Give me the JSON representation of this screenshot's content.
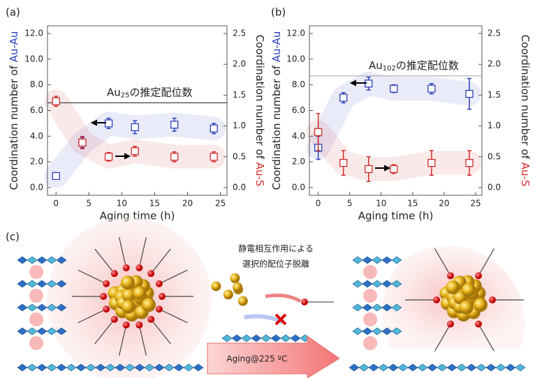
{
  "chart_data": [
    {
      "type": "scatter",
      "panel": "(a)",
      "xlabel": "Aging time (h)",
      "ylabel": "Coordination number of",
      "ylabel_species": "Au-Au",
      "y2label": "Coordination number of",
      "y2label_species": "Au-S",
      "xlim": [
        -1.3,
        26
      ],
      "xticks": [
        0,
        5,
        10,
        15,
        20,
        25
      ],
      "ylim": [
        -0.6,
        12.6
      ],
      "yticks": [
        {
          "value": 0,
          "label": "0.0"
        },
        {
          "value": 2,
          "label": "2.0"
        },
        {
          "value": 4,
          "label": "4.0"
        },
        {
          "value": 6,
          "label": "6.0"
        },
        {
          "value": 8,
          "label": "8.0"
        },
        {
          "value": 10,
          "label": "10.0"
        },
        {
          "value": 12,
          "label": "12.0"
        }
      ],
      "y2lim": [
        -0.125,
        2.625
      ],
      "y2ticks": [
        {
          "value": 0,
          "label": "0.0"
        },
        {
          "value": 0.5,
          "label": "0.5"
        },
        {
          "value": 1,
          "label": "1.0"
        },
        {
          "value": 1.5,
          "label": "1.5"
        },
        {
          "value": 2,
          "label": "2.0"
        },
        {
          "value": 2.5,
          "label": "2.5"
        }
      ],
      "ref_line": 6.6,
      "annotation": {
        "base": "Au",
        "sub": "25",
        "rest": "の推定配位数"
      },
      "series": [
        {
          "name": "Au-Au",
          "color": "#2a3fb8",
          "x": [
            0,
            4,
            8,
            12,
            18,
            24
          ],
          "values": [
            0.9,
            3.5,
            5.0,
            4.7,
            4.9,
            4.6
          ],
          "errors": [
            0.1,
            0.4,
            0.4,
            0.5,
            0.5,
            0.4
          ]
        },
        {
          "name": "Au-S",
          "color": "#d22a2a",
          "axis": "y2",
          "x": [
            0,
            4,
            8,
            12,
            18,
            24
          ],
          "values": [
            1.4,
            0.73,
            0.5,
            0.59,
            0.5,
            0.5
          ],
          "errors": [
            0.08,
            0.1,
            0.07,
            0.08,
            0.08,
            0.08
          ]
        }
      ]
    },
    {
      "type": "scatter",
      "panel": "(b)",
      "xlabel": "Aging time (h)",
      "ylabel": "Coordination number of",
      "ylabel_species": "Au-Au",
      "y2label": "Coordination number of",
      "y2label_species": "Au-S",
      "xlim": [
        -1.4,
        26
      ],
      "xticks": [
        0,
        5,
        10,
        15,
        20,
        25
      ],
      "ylim": [
        -0.6,
        12.6
      ],
      "yticks": [
        {
          "value": 0,
          "label": "0.0"
        },
        {
          "value": 2,
          "label": "2.0"
        },
        {
          "value": 4,
          "label": "4.0"
        },
        {
          "value": 6,
          "label": "6.0"
        },
        {
          "value": 8,
          "label": "8.0"
        },
        {
          "value": 10,
          "label": "10.0"
        },
        {
          "value": 12,
          "label": "12.0"
        }
      ],
      "y2lim": [
        -0.125,
        2.625
      ],
      "y2ticks": [
        {
          "value": 0,
          "label": "0.0"
        },
        {
          "value": 0.5,
          "label": "0.5"
        },
        {
          "value": 1,
          "label": "1.0"
        },
        {
          "value": 1.5,
          "label": "1.5"
        },
        {
          "value": 2,
          "label": "2.0"
        },
        {
          "value": 2.5,
          "label": "2.5"
        }
      ],
      "ref_line": 8.7,
      "annotation": {
        "base": "Au",
        "sub": "102",
        "rest": "の推定配位数"
      },
      "series": [
        {
          "name": "Au-Au",
          "color": "#2a3fb8",
          "x": [
            0,
            4,
            8,
            12,
            18,
            24
          ],
          "values": [
            3.1,
            7.0,
            8.1,
            7.7,
            7.7,
            7.3
          ],
          "errors": [
            0.9,
            0.4,
            0.5,
            0.3,
            0.4,
            1.2
          ]
        },
        {
          "name": "Au-S",
          "color": "#d22a2a",
          "axis": "y2",
          "x": [
            0,
            4,
            8,
            12,
            18,
            24
          ],
          "values": [
            0.9,
            0.4,
            0.3,
            0.3,
            0.4,
            0.4
          ],
          "errors": [
            0.3,
            0.2,
            0.2,
            0.07,
            0.2,
            0.2
          ]
        }
      ]
    }
  ],
  "diagram": {
    "panel": "(c)",
    "caption_line1": "静電相互作用による",
    "caption_line2": "選択的配位子脱離",
    "arrow_label": "Aging@225 ºC"
  }
}
